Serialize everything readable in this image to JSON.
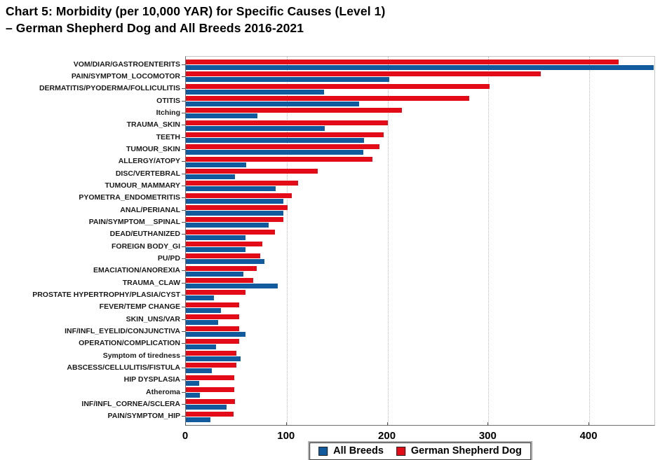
{
  "title": {
    "line1": "Chart 5: Morbidity (per 10,000 YAR) for Specific Causes (Level 1)",
    "line2": "– German Shepherd Dog and All Breeds 2016-2021"
  },
  "legend": {
    "items": [
      {
        "label": "All Breeds",
        "color": "#115a9e"
      },
      {
        "label": "German Shepherd Dog",
        "color": "#e30b17"
      }
    ]
  },
  "chart_data": {
    "type": "bar",
    "orientation": "horizontal",
    "title": "Chart 5: Morbidity (per 10,000 YAR) for Specific Causes (Level 1) – German Shepherd Dog and All Breeds 2016-2021",
    "xlabel": "",
    "ylabel": "",
    "xlim": [
      0,
      466
    ],
    "x_ticks": [
      0,
      100,
      200,
      300,
      400
    ],
    "grid": "vertical-dotted",
    "legend_position": "bottom-center",
    "bar_group_order_top_to_bottom": [
      "German Shepherd Dog",
      "All Breeds"
    ],
    "categories": [
      "VOM/DIAR/GASTROENTERITS",
      "PAIN/SYMPTOM_LOCOMOTOR",
      "DERMATITIS/PYODERMA/FOLLICULITIS",
      "OTITIS",
      "Itching",
      "TRAUMA_SKIN",
      "TEETH",
      "TUMOUR_SKIN",
      "ALLERGY/ATOPY",
      "DISC/VERTEBRAL",
      "TUMOUR_MAMMARY",
      "PYOMETRA_ENDOMETRITIS",
      "ANAL/PERIANAL",
      "PAIN/SYMPTOM__SPINAL",
      "DEAD/EUTHANIZED",
      "FOREIGN BODY_GI",
      "PU/PD",
      "EMACIATION/ANOREXIA",
      "TRAUMA_CLAW",
      "PROSTATE HYPERTROPHY/PLASIA/CYST",
      "FEVER/TEMP CHANGE",
      "SKIN_UNS/VAR",
      "INF/INFL_EYELID/CONJUNCTIVA",
      "OPERATION/COMPLICATION",
      "Symptom of tiredness",
      "ABSCESS/CELLULITIS/FISTULA",
      "HIP DYSPLASIA",
      "Atheroma",
      "INF/INFL_CORNEA/SCLERA",
      "PAIN/SYMPTOM_HIP"
    ],
    "series": [
      {
        "name": "All Breeds",
        "color": "#115a9e",
        "values": [
          464,
          202,
          137,
          172,
          71,
          138,
          177,
          176,
          60,
          49,
          89,
          97,
          97,
          82,
          59,
          59,
          78,
          57,
          91,
          28,
          35,
          32,
          59,
          30,
          54,
          26,
          13,
          14,
          40,
          24
        ]
      },
      {
        "name": "German Shepherd Dog",
        "color": "#e30b17",
        "values": [
          429,
          352,
          301,
          281,
          214,
          200,
          196,
          192,
          185,
          131,
          111,
          105,
          101,
          97,
          88,
          76,
          74,
          70,
          67,
          59,
          53,
          53,
          53,
          53,
          50,
          50,
          48,
          48,
          49,
          47
        ]
      }
    ]
  }
}
